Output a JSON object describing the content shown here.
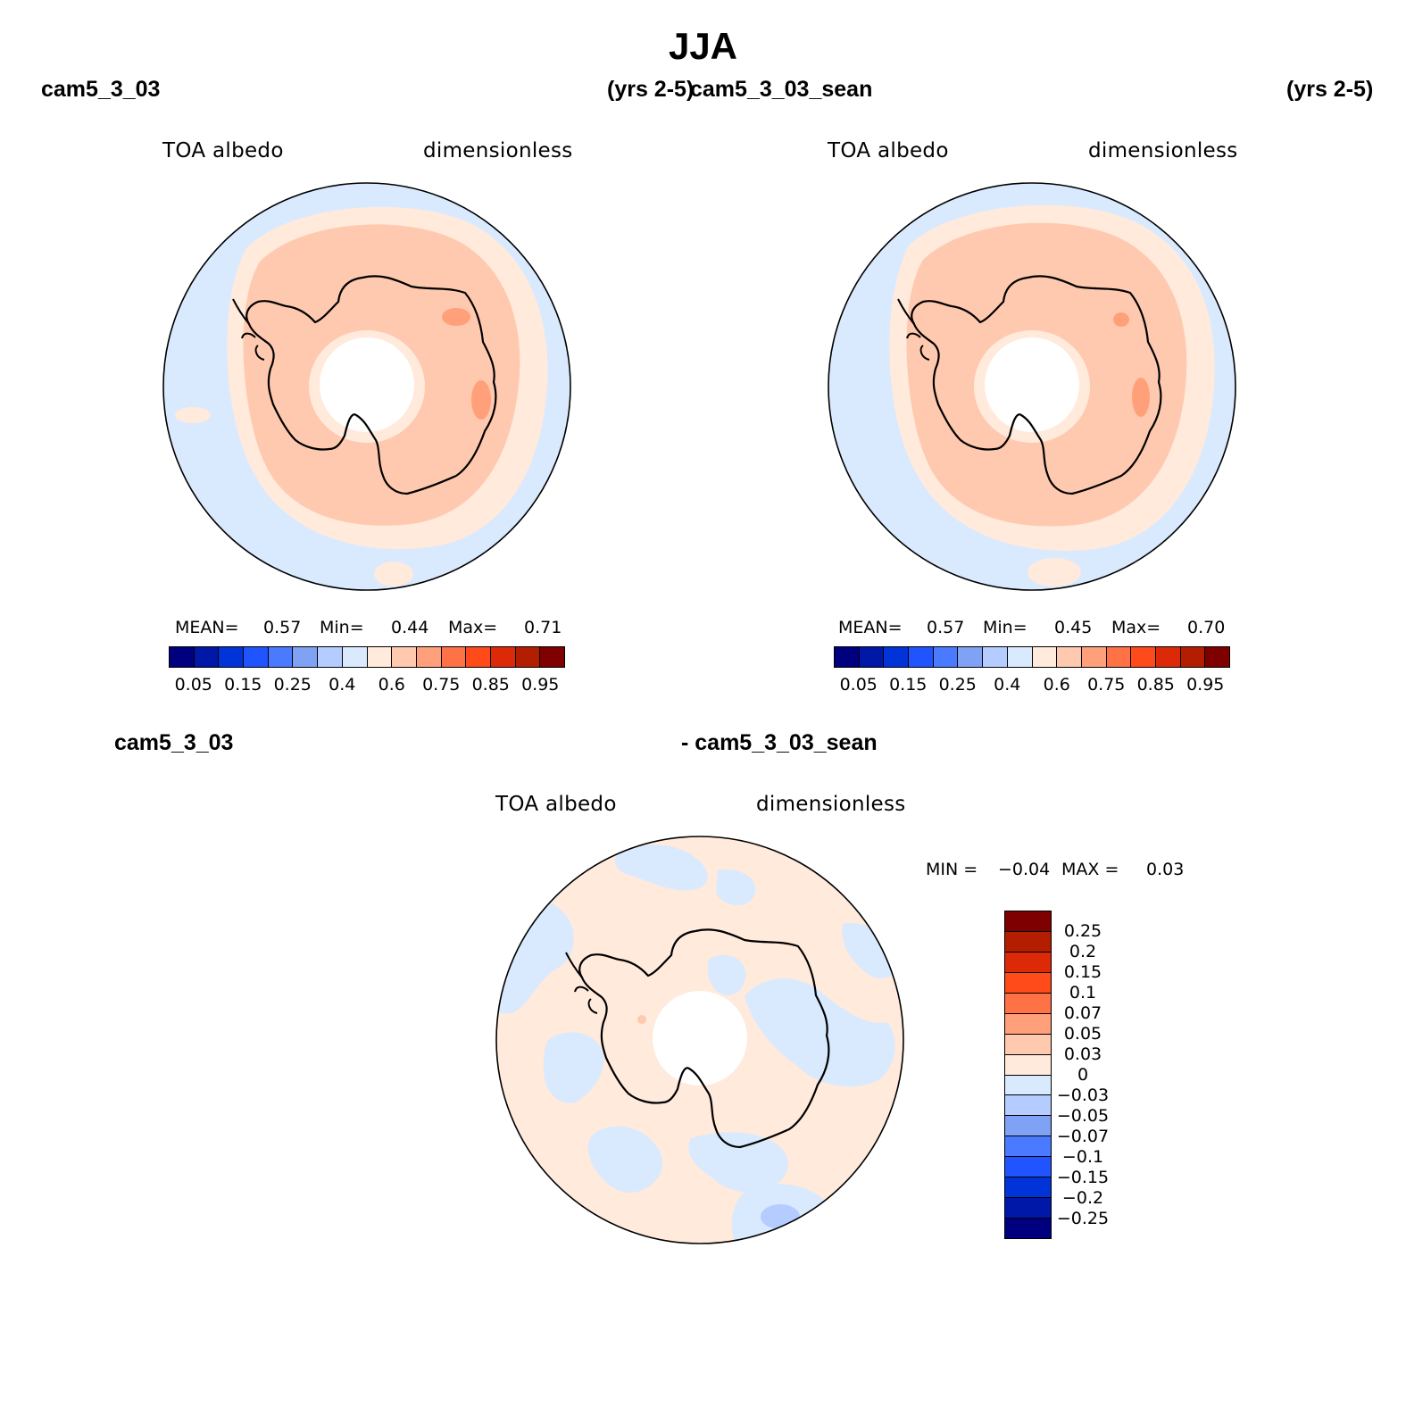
{
  "title": "JJA",
  "panels": [
    {
      "case": "cam5_3_03",
      "years": "(yrs 2-5)",
      "variable": "TOA albedo",
      "units": "dimensionless",
      "stats": {
        "mean_label": "MEAN=",
        "mean": "0.57",
        "min_label": "Min=",
        "min": "0.44",
        "max_label": "Max=",
        "max": "0.71"
      }
    },
    {
      "case": "cam5_3_03_sean",
      "years": "(yrs 2-5)",
      "variable": "TOA albedo",
      "units": "dimensionless",
      "stats": {
        "mean_label": "MEAN=",
        "mean": "0.57",
        "min_label": "Min=",
        "min": "0.45",
        "max_label": "Max=",
        "max": "0.70"
      }
    }
  ],
  "diff_panel": {
    "case_a": "cam5_3_03",
    "case_b": "- cam5_3_03_sean",
    "variable": "TOA albedo",
    "units": "dimensionless",
    "stats": {
      "min_label": "MIN =",
      "min": "−0.04",
      "max_label": "MAX =",
      "max": "0.03"
    }
  },
  "colorbar_main": {
    "colors": [
      "#00007f",
      "#0018a8",
      "#0034d8",
      "#1f54ff",
      "#4a7aff",
      "#7fa2f5",
      "#b4ccff",
      "#d9eaff",
      "#ffeadc",
      "#ffc9b0",
      "#ffa07a",
      "#ff7246",
      "#ff4a1a",
      "#dc2a08",
      "#b41e00",
      "#7e0000"
    ],
    "labels": [
      "0.05",
      "0.15",
      "0.25",
      "0.4",
      "0.6",
      "0.75",
      "0.85",
      "0.95"
    ]
  },
  "colorbar_diff": {
    "colors": [
      "#7e0000",
      "#b41e00",
      "#dc2a08",
      "#ff4a1a",
      "#ff7246",
      "#ffa07a",
      "#ffc9b0",
      "#ffeadc",
      "#d9eaff",
      "#b4ccff",
      "#7fa2f5",
      "#4a7aff",
      "#1f54ff",
      "#0034d8",
      "#0018a8",
      "#00007f"
    ],
    "labels": [
      "0.25",
      "0.2",
      "0.15",
      "0.1",
      "0.07",
      "0.05",
      "0.03",
      "0",
      "−0.03",
      "−0.05",
      "−0.07",
      "−0.1",
      "−0.15",
      "−0.2",
      "−0.25"
    ]
  },
  "map_colors": {
    "ocean_low": "#d9eaff",
    "light_peach": "#ffeadc",
    "peach": "#ffc9b0",
    "salmon": "#ffa07a",
    "pole_hole": "#ffffff",
    "coast": "#000000"
  }
}
